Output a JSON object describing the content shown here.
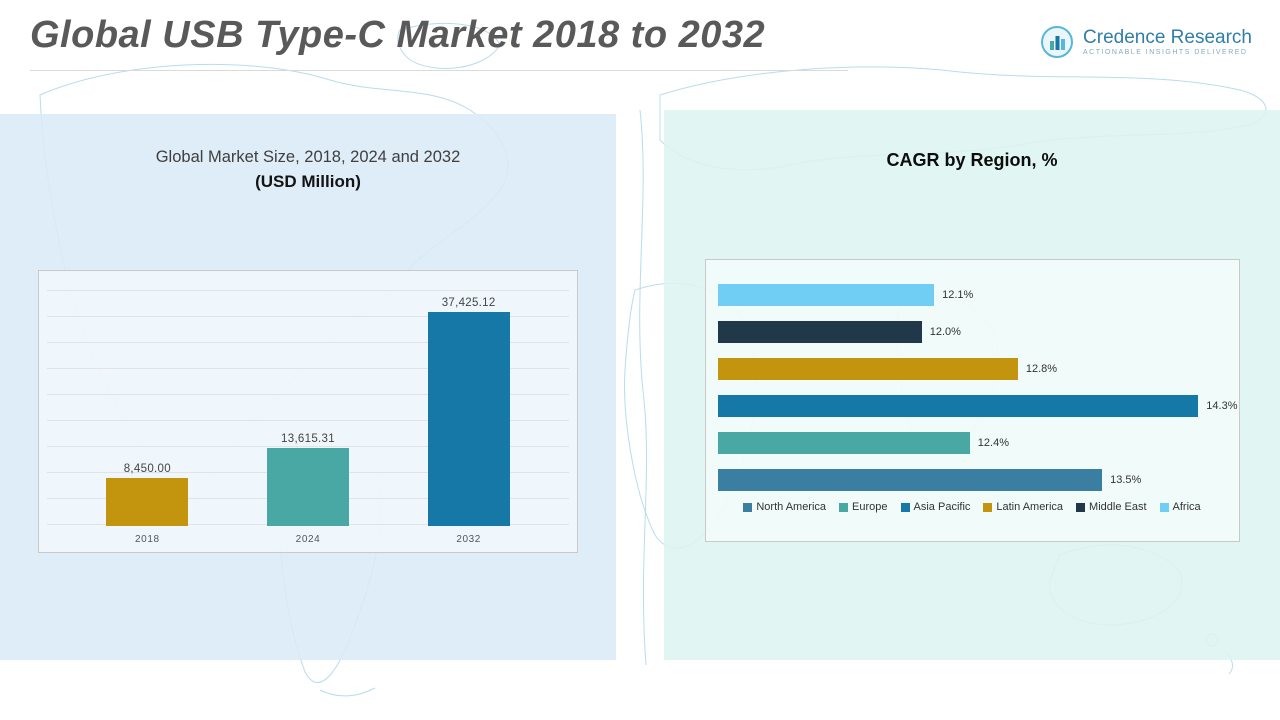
{
  "header": {
    "title": "Global USB Type-C Market 2018 to 2032"
  },
  "logo": {
    "name": "Credence Research",
    "tagline": "Actionable Insights Delivered",
    "icon": "bar-chart-in-circle-icon"
  },
  "colors": {
    "gold": "#C3940D",
    "teal": "#49A8A3",
    "blue": "#1578A6",
    "steel_blue": "#3A7FA2",
    "dark_navy": "#21384B",
    "light_sky": "#70CEF5",
    "panel_left_bg": "#D9EAF7",
    "panel_right_bg": "#DDF4F0",
    "title_gray": "#595959"
  },
  "chart_data": [
    {
      "type": "bar",
      "title": "Global Market Size, 2018, 2024 and 2032",
      "subtitle": "(USD Million)",
      "categories": [
        "2018",
        "2024",
        "2032"
      ],
      "values": [
        8450.0,
        13615.31,
        37425.12
      ],
      "value_labels": [
        "8,450.00",
        "13,615.31",
        "37,425.12"
      ],
      "colors": [
        "#C3940D",
        "#49A8A3",
        "#1578A6"
      ],
      "xlabel": "",
      "ylabel": "",
      "ylim": [
        0,
        42000
      ],
      "grid": true
    },
    {
      "type": "bar",
      "orientation": "horizontal",
      "title": "CAGR by Region, %",
      "bars": [
        {
          "region": "Africa",
          "value": 12.1,
          "label": "12.1%",
          "color": "#70CEF5"
        },
        {
          "region": "Middle East",
          "value": 12.0,
          "label": "12.0%",
          "color": "#21384B"
        },
        {
          "region": "Latin America",
          "value": 12.8,
          "label": "12.8%",
          "color": "#C3940D"
        },
        {
          "region": "Asia Pacific",
          "value": 14.3,
          "label": "14.3%",
          "color": "#1578A6"
        },
        {
          "region": "Europe",
          "value": 12.4,
          "label": "12.4%",
          "color": "#49A8A3"
        },
        {
          "region": "North America",
          "value": 13.5,
          "label": "13.5%",
          "color": "#3A7FA2"
        }
      ],
      "xlim": [
        10.3,
        14.6
      ],
      "grid": false,
      "legend_position": "bottom",
      "legend": [
        {
          "label": "North America",
          "color": "#3A7FA2"
        },
        {
          "label": "Europe",
          "color": "#49A8A3"
        },
        {
          "label": "Asia Pacific",
          "color": "#1578A6"
        },
        {
          "label": "Latin America",
          "color": "#C3940D"
        },
        {
          "label": "Middle East",
          "color": "#21384B"
        },
        {
          "label": "Africa",
          "color": "#70CEF5"
        }
      ]
    }
  ]
}
